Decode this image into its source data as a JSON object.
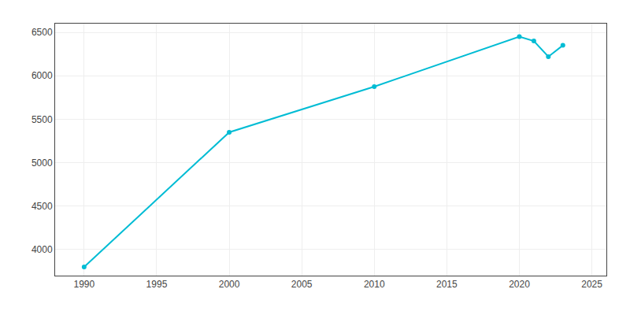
{
  "chart_data": {
    "type": "line",
    "x": [
      1990,
      2000,
      2010,
      2020,
      2021,
      2022,
      2023
    ],
    "values": [
      3800,
      5350,
      5875,
      6450,
      6400,
      6220,
      6350
    ],
    "color": "#00bcd4",
    "marker": "circle",
    "xlim": [
      1988,
      2026
    ],
    "ylim": [
      3700,
      6600
    ],
    "xticks": [
      1990,
      1995,
      2000,
      2005,
      2010,
      2015,
      2020,
      2025
    ],
    "yticks": [
      4000,
      4500,
      5000,
      5500,
      6000,
      6500
    ],
    "grid": true
  }
}
